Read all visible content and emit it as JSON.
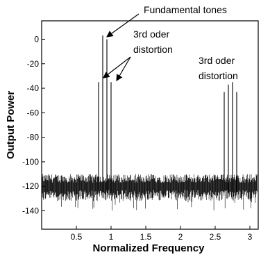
{
  "chart_data": {
    "type": "line",
    "title": "",
    "xlabel": "Normalized Frequency",
    "ylabel": "Output Power",
    "xlim": [
      0,
      3.12
    ],
    "ylim": [
      -155,
      15
    ],
    "x_ticks": [
      0.5,
      1,
      1.5,
      2,
      2.5,
      3
    ],
    "x_tick_labels": [
      "0.5",
      "1",
      "1.5",
      "2",
      "2.5",
      "3"
    ],
    "y_ticks": [
      0,
      -20,
      -40,
      -60,
      -80,
      -100,
      -120,
      -140
    ],
    "y_tick_labels": [
      "0",
      "-20",
      "-40",
      "-60",
      "-80",
      "-100",
      "-120",
      "-140"
    ],
    "grid": false,
    "noise_floor": {
      "mean": -120,
      "min": -140,
      "max": -110
    },
    "series": [
      {
        "x": [
          0.82,
          0.88,
          0.94,
          1.0,
          2.63,
          2.69,
          2.75,
          2.81
        ],
        "y": [
          -35,
          3,
          0,
          -35,
          -43,
          -37,
          -35,
          -43
        ]
      }
    ],
    "annotations": [
      {
        "text": "Fundamental tones"
      },
      {
        "text": "3rd oder distortion"
      },
      {
        "text": "3rd oder distortion"
      }
    ]
  }
}
